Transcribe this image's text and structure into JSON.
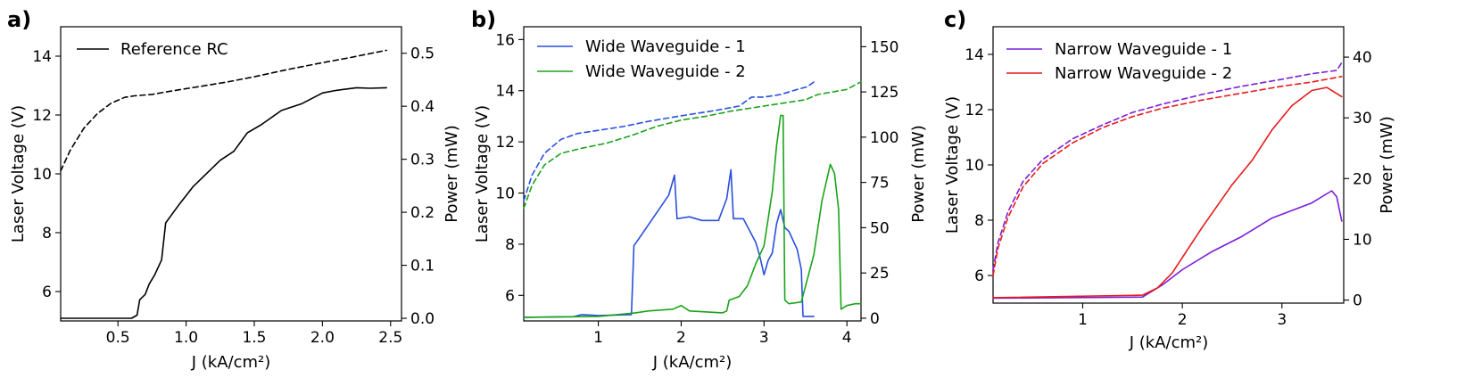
{
  "chart_data": [
    {
      "type": "line",
      "panel_label": "a)",
      "xlabel": "J (kA/cm²)",
      "ylabel_left": "Laser Voltage (V)",
      "ylabel_right": "Power (mW)",
      "xlim": [
        0.08,
        2.58
      ],
      "ylim_left": [
        5.0,
        15.0
      ],
      "ylim_right": [
        -0.005,
        0.55
      ],
      "xticks": [
        0.5,
        1.0,
        1.5,
        2.0,
        2.5
      ],
      "xtick_labels": [
        "0.5",
        "1.0",
        "1.5",
        "2.0",
        "2.5"
      ],
      "yticks_left": [
        6,
        8,
        10,
        12,
        14
      ],
      "ytick_labels_left": [
        "6",
        "8",
        "10",
        "12",
        "14"
      ],
      "yticks_right": [
        0.0,
        0.1,
        0.2,
        0.3,
        0.4,
        0.5
      ],
      "ytick_labels_right": [
        "0.0",
        "0.1",
        "0.2",
        "0.3",
        "0.4",
        "0.5"
      ],
      "legend_position": "upper-left",
      "series": [
        {
          "name": "Reference RC",
          "color": "#000000",
          "voltage": [
            [
              0.08,
              10.1
            ],
            [
              0.15,
              10.8
            ],
            [
              0.25,
              11.55
            ],
            [
              0.35,
              12.05
            ],
            [
              0.45,
              12.4
            ],
            [
              0.55,
              12.6
            ],
            [
              0.62,
              12.65
            ],
            [
              0.75,
              12.7
            ],
            [
              0.9,
              12.82
            ],
            [
              1.1,
              12.97
            ],
            [
              1.3,
              13.12
            ],
            [
              1.5,
              13.3
            ],
            [
              1.75,
              13.55
            ],
            [
              2.0,
              13.78
            ],
            [
              2.2,
              13.95
            ],
            [
              2.47,
              14.2
            ]
          ],
          "power": [
            [
              0.08,
              0.0
            ],
            [
              0.6,
              0.0
            ],
            [
              0.64,
              0.006
            ],
            [
              0.66,
              0.035
            ],
            [
              0.7,
              0.045
            ],
            [
              0.73,
              0.065
            ],
            [
              0.77,
              0.082
            ],
            [
              0.82,
              0.11
            ],
            [
              0.85,
              0.18
            ],
            [
              0.95,
              0.215
            ],
            [
              1.05,
              0.248
            ],
            [
              1.15,
              0.273
            ],
            [
              1.25,
              0.298
            ],
            [
              1.35,
              0.315
            ],
            [
              1.45,
              0.35
            ],
            [
              1.55,
              0.365
            ],
            [
              1.7,
              0.392
            ],
            [
              1.85,
              0.405
            ],
            [
              2.0,
              0.425
            ],
            [
              2.1,
              0.43
            ],
            [
              2.25,
              0.435
            ],
            [
              2.35,
              0.434
            ],
            [
              2.47,
              0.435
            ]
          ]
        }
      ]
    },
    {
      "type": "line",
      "panel_label": "b)",
      "xlabel": "J (kA/cm²)",
      "ylabel_left": "Laser Voltage (V)",
      "ylabel_right": "Power (mW)",
      "xlim": [
        0.1,
        4.17
      ],
      "ylim_left": [
        5.0,
        16.5
      ],
      "ylim_right": [
        -1.5,
        161
      ],
      "xticks": [
        1,
        2,
        3,
        4
      ],
      "xtick_labels": [
        "1",
        "2",
        "3",
        "4"
      ],
      "yticks_left": [
        6,
        8,
        10,
        12,
        14,
        16
      ],
      "ytick_labels_left": [
        "6",
        "8",
        "10",
        "12",
        "14",
        "16"
      ],
      "yticks_right": [
        0,
        25,
        50,
        75,
        100,
        125,
        150
      ],
      "ytick_labels_right": [
        "0",
        "25",
        "50",
        "75",
        "100",
        "125",
        "150"
      ],
      "legend_position": "upper-left",
      "series": [
        {
          "name": "Wide Waveguide - 1",
          "color": "#2a4ee0",
          "voltage": [
            [
              0.1,
              9.7
            ],
            [
              0.2,
              10.7
            ],
            [
              0.35,
              11.55
            ],
            [
              0.55,
              12.1
            ],
            [
              0.75,
              12.33
            ],
            [
              1.0,
              12.45
            ],
            [
              1.3,
              12.6
            ],
            [
              1.6,
              12.8
            ],
            [
              2.0,
              13.02
            ],
            [
              2.4,
              13.22
            ],
            [
              2.7,
              13.4
            ],
            [
              2.85,
              13.75
            ],
            [
              3.0,
              13.75
            ],
            [
              3.2,
              13.85
            ],
            [
              3.4,
              14.05
            ],
            [
              3.52,
              14.15
            ],
            [
              3.62,
              14.38
            ]
          ],
          "power": [
            [
              0.1,
              0.5
            ],
            [
              0.7,
              0.8
            ],
            [
              0.8,
              2
            ],
            [
              1.0,
              1.5
            ],
            [
              1.4,
              2
            ],
            [
              1.43,
              40
            ],
            [
              1.55,
              48
            ],
            [
              1.7,
              58
            ],
            [
              1.85,
              68
            ],
            [
              1.92,
              79
            ],
            [
              1.95,
              55
            ],
            [
              2.1,
              56
            ],
            [
              2.25,
              54
            ],
            [
              2.45,
              54
            ],
            [
              2.55,
              66
            ],
            [
              2.6,
              82
            ],
            [
              2.63,
              55
            ],
            [
              2.75,
              55
            ],
            [
              2.9,
              42
            ],
            [
              2.95,
              34
            ],
            [
              3.0,
              24
            ],
            [
              3.05,
              32
            ],
            [
              3.1,
              36
            ],
            [
              3.15,
              52
            ],
            [
              3.2,
              60
            ],
            [
              3.25,
              50
            ],
            [
              3.3,
              48
            ],
            [
              3.4,
              38
            ],
            [
              3.45,
              27
            ],
            [
              3.47,
              1
            ],
            [
              3.6,
              1
            ]
          ]
        },
        {
          "name": "Wide Waveguide - 2",
          "color": "#1aa31a",
          "voltage": [
            [
              0.1,
              9.4
            ],
            [
              0.2,
              10.3
            ],
            [
              0.35,
              11.1
            ],
            [
              0.55,
              11.55
            ],
            [
              0.8,
              11.75
            ],
            [
              1.1,
              11.95
            ],
            [
              1.4,
              12.25
            ],
            [
              1.7,
              12.6
            ],
            [
              2.0,
              12.85
            ],
            [
              2.3,
              13.0
            ],
            [
              2.6,
              13.2
            ],
            [
              2.9,
              13.35
            ],
            [
              3.2,
              13.5
            ],
            [
              3.5,
              13.65
            ],
            [
              3.65,
              13.85
            ],
            [
              4.0,
              14.05
            ],
            [
              4.17,
              14.35
            ]
          ],
          "power": [
            [
              0.1,
              0.5
            ],
            [
              1.0,
              1
            ],
            [
              1.45,
              3
            ],
            [
              1.6,
              4
            ],
            [
              1.9,
              5
            ],
            [
              2.0,
              7
            ],
            [
              2.1,
              4
            ],
            [
              2.5,
              3
            ],
            [
              2.55,
              4
            ],
            [
              2.58,
              10
            ],
            [
              2.7,
              12
            ],
            [
              2.8,
              18
            ],
            [
              2.9,
              30
            ],
            [
              3.0,
              40
            ],
            [
              3.1,
              70
            ],
            [
              3.15,
              95
            ],
            [
              3.2,
              112
            ],
            [
              3.23,
              112
            ],
            [
              3.25,
              10
            ],
            [
              3.3,
              8
            ],
            [
              3.45,
              9
            ],
            [
              3.6,
              35
            ],
            [
              3.7,
              65
            ],
            [
              3.8,
              85
            ],
            [
              3.85,
              80
            ],
            [
              3.9,
              60
            ],
            [
              3.93,
              5
            ],
            [
              4.0,
              7
            ],
            [
              4.1,
              8
            ],
            [
              4.17,
              8
            ]
          ]
        }
      ]
    },
    {
      "type": "line",
      "panel_label": "c)",
      "xlabel": "J (kA/cm²)",
      "ylabel_left": "Laser Voltage (V)",
      "ylabel_right": "Power (mW)",
      "xlim": [
        0.1,
        3.62
      ],
      "ylim_left": [
        5.0,
        15.0
      ],
      "ylim_right": [
        -0.5,
        45
      ],
      "xticks": [
        1,
        2,
        3
      ],
      "xtick_labels": [
        "1",
        "2",
        "3"
      ],
      "yticks_left": [
        6,
        8,
        10,
        12,
        14
      ],
      "ytick_labels_left": [
        "6",
        "8",
        "10",
        "12",
        "14"
      ],
      "yticks_right": [
        0,
        10,
        20,
        30,
        40
      ],
      "ytick_labels_right": [
        "0",
        "10",
        "20",
        "30",
        "40"
      ],
      "legend_position": "upper-left",
      "series": [
        {
          "name": "Narrow Waveguide - 1",
          "color": "#7a1fd8",
          "voltage": [
            [
              0.1,
              6.2
            ],
            [
              0.15,
              7.2
            ],
            [
              0.25,
              8.3
            ],
            [
              0.4,
              9.4
            ],
            [
              0.6,
              10.2
            ],
            [
              0.9,
              10.95
            ],
            [
              1.2,
              11.45
            ],
            [
              1.5,
              11.9
            ],
            [
              1.8,
              12.2
            ],
            [
              2.2,
              12.55
            ],
            [
              2.6,
              12.85
            ],
            [
              3.0,
              13.1
            ],
            [
              3.3,
              13.3
            ],
            [
              3.55,
              13.42
            ],
            [
              3.6,
              13.7
            ]
          ],
          "power": [
            [
              0.1,
              0.3
            ],
            [
              1.6,
              0.5
            ],
            [
              1.8,
              2.5
            ],
            [
              2.0,
              5
            ],
            [
              2.3,
              8
            ],
            [
              2.6,
              10.5
            ],
            [
              2.9,
              13.5
            ],
            [
              3.3,
              16
            ],
            [
              3.5,
              18
            ],
            [
              3.55,
              17
            ],
            [
              3.6,
              13
            ]
          ]
        },
        {
          "name": "Narrow Waveguide - 2",
          "color": "#e8191b",
          "voltage": [
            [
              0.1,
              6.0
            ],
            [
              0.15,
              7.0
            ],
            [
              0.25,
              8.1
            ],
            [
              0.4,
              9.2
            ],
            [
              0.6,
              10.05
            ],
            [
              0.9,
              10.8
            ],
            [
              1.2,
              11.35
            ],
            [
              1.5,
              11.75
            ],
            [
              1.8,
              12.05
            ],
            [
              2.2,
              12.35
            ],
            [
              2.6,
              12.6
            ],
            [
              3.0,
              12.85
            ],
            [
              3.3,
              13.0
            ],
            [
              3.6,
              13.2
            ]
          ],
          "power": [
            [
              0.1,
              0.4
            ],
            [
              1.6,
              0.8
            ],
            [
              1.75,
              2
            ],
            [
              1.9,
              4.5
            ],
            [
              2.0,
              7
            ],
            [
              2.2,
              12
            ],
            [
              2.5,
              19
            ],
            [
              2.7,
              23
            ],
            [
              2.9,
              28
            ],
            [
              3.1,
              32
            ],
            [
              3.3,
              34.5
            ],
            [
              3.45,
              35
            ],
            [
              3.6,
              33.5
            ]
          ]
        }
      ]
    }
  ]
}
